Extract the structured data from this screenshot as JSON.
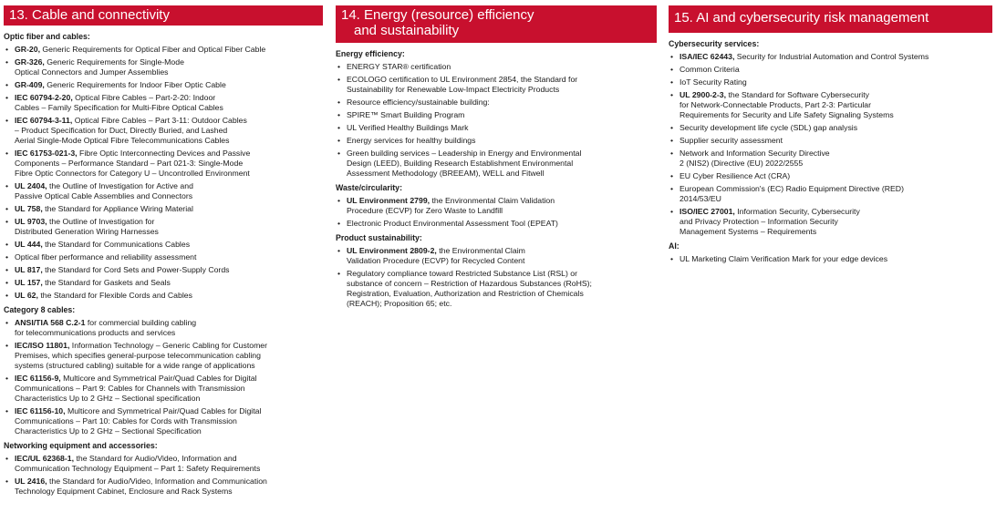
{
  "col1": {
    "header": "13. Cable and connectivity",
    "sections": [
      {
        "title": "Optic fiber and cables:",
        "items": [
          {
            "b": "GR-20,",
            "t": " Generic Requirements for Optical Fiber and Optical Fiber Cable"
          },
          {
            "b": "GR-326,",
            "t": " Generic Requirements for Single-Mode\nOptical Connectors and Jumper Assemblies"
          },
          {
            "b": "GR-409,",
            "t": " Generic Requirements for Indoor Fiber Optic Cable"
          },
          {
            "b": "IEC 60794-2-20,",
            "t": " Optical Fibre Cables – Part-2-20: Indoor\nCables – Family Specification for Multi-Fibre Optical Cables"
          },
          {
            "b": "IEC 60794-3-11,",
            "t": " Optical Fibre Cables – Part 3-11: Outdoor Cables\n– Product Specification for Duct, Directly Buried, and Lashed\nAerial Single-Mode Optical Fibre Telecommunications Cables"
          },
          {
            "b": "IEC 61753-021-3,",
            "t": " Fibre Optic Interconnecting Devices and Passive\nComponents – Performance Standard – Part 021-3: Single-Mode\nFibre Optic Connectors for Category U – Uncontrolled Environment"
          },
          {
            "b": "UL 2404,",
            "t": " the Outline of Investigation for Active and\nPassive Optical Cable Assemblies and Connectors"
          },
          {
            "b": "UL 758,",
            "t": " the Standard for Appliance Wiring Material"
          },
          {
            "b": "UL 9703,",
            "t": " the Outline of Investigation for\nDistributed Generation Wiring Harnesses"
          },
          {
            "b": "UL 444,",
            "t": " the Standard for Communications Cables"
          },
          {
            "b": "",
            "t": "Optical fiber performance and reliability assessment"
          },
          {
            "b": "UL 817,",
            "t": " the Standard for Cord Sets and Power-Supply Cords"
          },
          {
            "b": "UL 157,",
            "t": " the Standard for Gaskets and Seals"
          },
          {
            "b": "UL 62,",
            "t": " the Standard for Flexible Cords and Cables"
          }
        ]
      },
      {
        "title": "Category 8 cables:",
        "items": [
          {
            "b": "ANSI/TIA 568 C.2-1",
            "t": " for commercial building cabling\nfor telecommunications products and services"
          },
          {
            "b": "IEC/ISO 11801,",
            "t": " Information Technology – Generic Cabling for Customer\nPremises, which specifies general-purpose telecommunication cabling\nsystems (structured cabling) suitable for a wide range of applications"
          },
          {
            "b": "IEC 61156-9,",
            "t": " Multicore and Symmetrical Pair/Quad Cables for Digital\nCommunications – Part 9: Cables for Channels with Transmission\nCharacteristics Up to 2 GHz – Sectional specification"
          },
          {
            "b": "IEC 61156-10,",
            "t": " Multicore and Symmetrical Pair/Quad Cables for Digital\nCommunications – Part 10: Cables for Cords with Transmission\nCharacteristics Up to 2 GHz – Sectional Specification"
          }
        ]
      },
      {
        "title": "Networking equipment and accessories:",
        "items": [
          {
            "b": "IEC/UL 62368-1,",
            "t": " the Standard for Audio/Video, Information and\nCommunication Technology Equipment – Part 1: Safety Requirements"
          },
          {
            "b": "UL 2416,",
            "t": " the Standard for Audio/Video, Information and Communication\nTechnology Equipment Cabinet, Enclosure and Rack Systems"
          }
        ]
      }
    ]
  },
  "col2": {
    "header_line1": "14. Energy (resource) efficiency",
    "header_line2": "and sustainability",
    "sections": [
      {
        "title": "Energy efficiency:",
        "items": [
          {
            "b": "",
            "t": "ENERGY STAR® certification"
          },
          {
            "b": "",
            "t": "ECOLOGO certification to UL Environment 2854, the Standard for\nSustainability for Renewable Low-Impact Electricity Products"
          },
          {
            "b": "",
            "t": "Resource efficiency/sustainable building:"
          },
          {
            "b": "",
            "t": "SPIRE™ Smart Building Program"
          },
          {
            "b": "",
            "t": "UL Verified Healthy Buildings Mark"
          },
          {
            "b": "",
            "t": "Energy services for healthy buildings"
          },
          {
            "b": "",
            "t": "Green building services – Leadership in Energy and Environmental\nDesign (LEED), Building Research Establishment Environmental\nAssessment Methodology (BREEAM), WELL and Fitwell"
          }
        ]
      },
      {
        "title": "Waste/circularity:",
        "items": [
          {
            "b": "UL Environment 2799,",
            "t": " the Environmental Claim Validation\nProcedure (ECVP) for Zero Waste to Landfill"
          },
          {
            "b": "",
            "t": "Electronic Product Environmental Assessment Tool (EPEAT)"
          }
        ]
      },
      {
        "title": "Product sustainability:",
        "items": [
          {
            "b": "UL Environment 2809-2,",
            "t": " the Environmental Claim\nValidation Procedure (ECVP) for Recycled Content"
          },
          {
            "b": "",
            "t": "Regulatory compliance toward Restricted Substance List (RSL) or\nsubstance of concern – Restriction of Hazardous Substances (RoHS);\nRegistration, Evaluation, Authorization and Restriction of Chemicals\n(REACH); Proposition 65; etc."
          }
        ]
      }
    ]
  },
  "col3": {
    "header": "15. AI and cybersecurity risk management",
    "sections": [
      {
        "title": "Cybersecurity services:",
        "items": [
          {
            "b": "ISA/IEC 62443,",
            "t": " Security for Industrial Automation and Control Systems"
          },
          {
            "b": "",
            "t": "Common Criteria"
          },
          {
            "b": "",
            "t": "IoT Security Rating"
          },
          {
            "b": "UL 2900-2-3,",
            "t": " the Standard for Software Cybersecurity\nfor Network-Connectable Products, Part 2-3: Particular\nRequirements for Security and Life Safety Signaling Systems"
          },
          {
            "b": "",
            "t": "Security development life cycle (SDL) gap analysis"
          },
          {
            "b": "",
            "t": "Supplier security assessment"
          },
          {
            "b": "",
            "t": "Network and Information Security Directive\n2 (NIS2) (Directive (EU) 2022/2555"
          },
          {
            "b": "",
            "t": "EU Cyber Resilience Act (CRA)"
          },
          {
            "b": "",
            "t": "European Commission's (EC) Radio Equipment Directive (RED)\n2014/53/EU"
          },
          {
            "b": "ISO/IEC 27001,",
            "t": " Information Security, Cybersecurity\nand Privacy Protection – Information Security\nManagement Systems – Requirements"
          }
        ]
      },
      {
        "title": "AI:",
        "items": [
          {
            "b": "",
            "t": "UL Marketing Claim Verification Mark for your edge devices"
          }
        ]
      }
    ]
  }
}
